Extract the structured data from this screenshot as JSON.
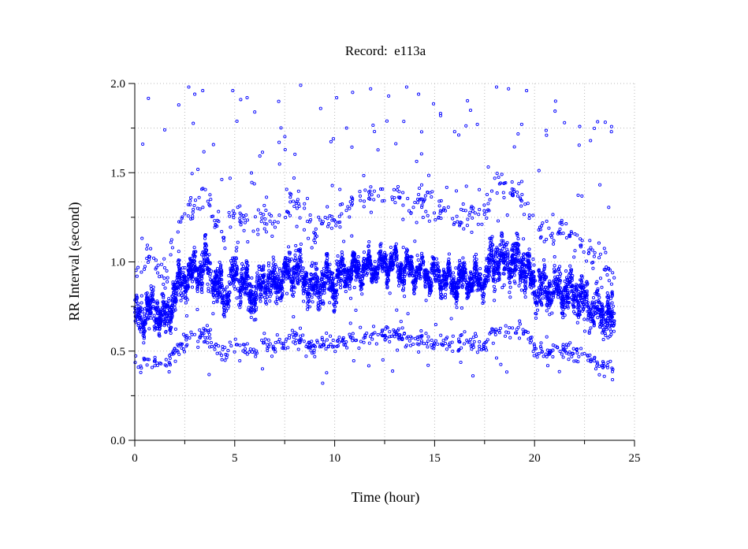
{
  "chart_data": {
    "type": "scatter",
    "title": "Record:  e113a",
    "xlabel": "Time (hour)",
    "ylabel": "RR Interval (second)",
    "xlim": [
      0,
      25
    ],
    "ylim": [
      0.0,
      2.0
    ],
    "x_ticks": [
      "0",
      "5",
      "10",
      "15",
      "20",
      "25"
    ],
    "x_minor_ticks": [
      2.5,
      7.5,
      12.5,
      17.5,
      22.5
    ],
    "y_ticks": [
      "0.0",
      "0.5",
      "1.0",
      "1.5",
      "2.0"
    ],
    "y_minor_ticks": [
      0.25,
      0.75,
      1.25,
      1.75
    ],
    "grid": true,
    "marker": "open-circle",
    "series": [
      {
        "color": "#0000ff",
        "baseline_profile": [
          {
            "x": 0.0,
            "y": 0.72
          },
          {
            "x": 0.3,
            "y": 0.66
          },
          {
            "x": 0.6,
            "y": 0.76
          },
          {
            "x": 1.0,
            "y": 0.7
          },
          {
            "x": 1.3,
            "y": 0.74
          },
          {
            "x": 1.6,
            "y": 0.66
          },
          {
            "x": 2.0,
            "y": 0.84
          },
          {
            "x": 2.5,
            "y": 0.9
          },
          {
            "x": 3.0,
            "y": 0.94
          },
          {
            "x": 3.6,
            "y": 1.0
          },
          {
            "x": 4.0,
            "y": 0.88
          },
          {
            "x": 4.5,
            "y": 0.8
          },
          {
            "x": 5.0,
            "y": 0.93
          },
          {
            "x": 5.5,
            "y": 0.86
          },
          {
            "x": 6.0,
            "y": 0.82
          },
          {
            "x": 6.5,
            "y": 0.9
          },
          {
            "x": 7.0,
            "y": 0.86
          },
          {
            "x": 7.5,
            "y": 0.92
          },
          {
            "x": 8.0,
            "y": 0.98
          },
          {
            "x": 8.5,
            "y": 0.9
          },
          {
            "x": 9.0,
            "y": 0.84
          },
          {
            "x": 9.5,
            "y": 0.9
          },
          {
            "x": 10.0,
            "y": 0.88
          },
          {
            "x": 10.5,
            "y": 0.94
          },
          {
            "x": 11.0,
            "y": 0.96
          },
          {
            "x": 12.0,
            "y": 0.97
          },
          {
            "x": 12.8,
            "y": 0.99
          },
          {
            "x": 13.5,
            "y": 0.95
          },
          {
            "x": 14.5,
            "y": 0.95
          },
          {
            "x": 15.0,
            "y": 0.92
          },
          {
            "x": 16.0,
            "y": 0.89
          },
          {
            "x": 17.0,
            "y": 0.9
          },
          {
            "x": 17.6,
            "y": 0.9
          },
          {
            "x": 17.8,
            "y": 1.0
          },
          {
            "x": 18.5,
            "y": 1.02
          },
          {
            "x": 19.0,
            "y": 0.99
          },
          {
            "x": 19.5,
            "y": 0.98
          },
          {
            "x": 20.0,
            "y": 0.86
          },
          {
            "x": 20.5,
            "y": 0.83
          },
          {
            "x": 21.0,
            "y": 0.86
          },
          {
            "x": 21.5,
            "y": 0.84
          },
          {
            "x": 22.0,
            "y": 0.82
          },
          {
            "x": 22.5,
            "y": 0.78
          },
          {
            "x": 23.0,
            "y": 0.74
          },
          {
            "x": 23.5,
            "y": 0.7
          },
          {
            "x": 24.0,
            "y": 0.66
          }
        ],
        "outliers": [
          {
            "x": 2.7,
            "y": 1.98
          },
          {
            "x": 3.0,
            "y": 1.94
          },
          {
            "x": 3.4,
            "y": 1.96
          },
          {
            "x": 1.5,
            "y": 1.74
          },
          {
            "x": 2.2,
            "y": 1.88
          },
          {
            "x": 4.9,
            "y": 1.96
          },
          {
            "x": 5.3,
            "y": 1.91
          },
          {
            "x": 6.0,
            "y": 1.84
          },
          {
            "x": 7.2,
            "y": 1.9
          },
          {
            "x": 8.3,
            "y": 1.99
          },
          {
            "x": 9.3,
            "y": 1.86
          },
          {
            "x": 10.1,
            "y": 1.92
          },
          {
            "x": 10.9,
            "y": 1.95
          },
          {
            "x": 11.8,
            "y": 1.97
          },
          {
            "x": 12.7,
            "y": 1.93
          },
          {
            "x": 13.6,
            "y": 1.98
          },
          {
            "x": 14.2,
            "y": 1.94
          },
          {
            "x": 15.3,
            "y": 1.82
          },
          {
            "x": 16.0,
            "y": 1.73
          },
          {
            "x": 16.8,
            "y": 1.85
          },
          {
            "x": 18.1,
            "y": 1.98
          },
          {
            "x": 18.7,
            "y": 1.97
          },
          {
            "x": 19.6,
            "y": 1.96
          },
          {
            "x": 20.6,
            "y": 1.71
          },
          {
            "x": 21.5,
            "y": 1.78
          },
          {
            "x": 22.8,
            "y": 1.68
          },
          {
            "x": 0.4,
            "y": 1.66
          },
          {
            "x": 9.4,
            "y": 0.32
          },
          {
            "x": 23.9,
            "y": 0.34
          },
          {
            "x": 0.3,
            "y": 0.38
          }
        ]
      }
    ]
  }
}
